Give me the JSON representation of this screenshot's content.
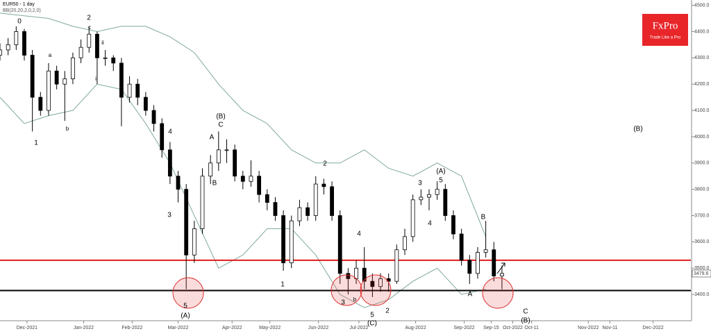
{
  "header": {
    "symbol": "EUR50 - 1 day",
    "indicator": "BB(20,20,2,0,2,0)"
  },
  "logo": {
    "brand": "FxPro",
    "slogan": "Trade Like a Pro"
  },
  "chart_data": {
    "type": "candlestick",
    "x": [
      0,
      3,
      6,
      9,
      12,
      15,
      18,
      21,
      24,
      27,
      30,
      33,
      36,
      39,
      42,
      45,
      48,
      51,
      54,
      57,
      60,
      63,
      66,
      69,
      72,
      75,
      78,
      81,
      84,
      87,
      90,
      93,
      96,
      99,
      102,
      105,
      108,
      111,
      114,
      117,
      120,
      123,
      126,
      129,
      132,
      135,
      138,
      141,
      144,
      147,
      150,
      153,
      156,
      159,
      162,
      165,
      168,
      171,
      174,
      177,
      180,
      183,
      186
    ],
    "ohlc": [
      [
        4310,
        4355,
        4290,
        4330
      ],
      [
        4330,
        4375,
        4310,
        4350
      ],
      [
        4350,
        4420,
        4330,
        4400
      ],
      [
        4400,
        4410,
        4290,
        4310
      ],
      [
        4310,
        4330,
        4020,
        4150
      ],
      [
        4150,
        4170,
        4080,
        4100
      ],
      [
        4100,
        4280,
        4080,
        4250
      ],
      [
        4250,
        4270,
        4180,
        4200
      ],
      [
        4200,
        4250,
        4060,
        4220
      ],
      [
        4220,
        4320,
        4200,
        4300
      ],
      [
        4300,
        4370,
        4280,
        4340
      ],
      [
        4340,
        4420,
        4320,
        4390
      ],
      [
        4390,
        4400,
        4200,
        4300
      ],
      [
        4300,
        4330,
        4270,
        4300
      ],
      [
        4300,
        4310,
        4250,
        4280
      ],
      [
        4280,
        4300,
        4040,
        4150
      ],
      [
        4150,
        4230,
        4130,
        4200
      ],
      [
        4200,
        4220,
        4120,
        4150
      ],
      [
        4150,
        4170,
        4080,
        4100
      ],
      [
        4100,
        4120,
        4020,
        4050
      ],
      [
        4050,
        4070,
        3920,
        3950
      ],
      [
        3950,
        3980,
        3820,
        3850
      ],
      [
        3850,
        3870,
        3750,
        3800
      ],
      [
        3800,
        3820,
        3420,
        3550
      ],
      [
        3550,
        3680,
        3520,
        3650
      ],
      [
        3650,
        3880,
        3630,
        3850
      ],
      [
        3850,
        3930,
        3820,
        3900
      ],
      [
        3900,
        4020,
        3870,
        3950
      ],
      [
        3950,
        3990,
        3900,
        3950
      ],
      [
        3950,
        3970,
        3830,
        3850
      ],
      [
        3850,
        3870,
        3800,
        3830
      ],
      [
        3830,
        3910,
        3810,
        3850
      ],
      [
        3850,
        3870,
        3750,
        3780
      ],
      [
        3780,
        3800,
        3720,
        3750
      ],
      [
        3750,
        3770,
        3680,
        3700
      ],
      [
        3700,
        3720,
        3490,
        3520
      ],
      [
        3520,
        3700,
        3500,
        3680
      ],
      [
        3680,
        3760,
        3660,
        3730
      ],
      [
        3730,
        3750,
        3680,
        3700
      ],
      [
        3700,
        3850,
        3680,
        3820
      ],
      [
        3820,
        3840,
        3780,
        3810
      ],
      [
        3810,
        3830,
        3680,
        3700
      ],
      [
        3700,
        3720,
        3440,
        3480
      ],
      [
        3480,
        3500,
        3400,
        3460
      ],
      [
        3460,
        3530,
        3440,
        3500
      ],
      [
        3500,
        3580,
        3420,
        3450
      ],
      [
        3450,
        3480,
        3390,
        3430
      ],
      [
        3430,
        3480,
        3410,
        3460
      ],
      [
        3460,
        3480,
        3410,
        3450
      ],
      [
        3450,
        3590,
        3440,
        3570
      ],
      [
        3570,
        3650,
        3550,
        3620
      ],
      [
        3620,
        3780,
        3600,
        3760
      ],
      [
        3760,
        3800,
        3740,
        3770
      ],
      [
        3770,
        3800,
        3720,
        3780
      ],
      [
        3780,
        3830,
        3760,
        3800
      ],
      [
        3800,
        3820,
        3680,
        3700
      ],
      [
        3700,
        3720,
        3610,
        3630
      ],
      [
        3630,
        3650,
        3510,
        3530
      ],
      [
        3530,
        3550,
        3440,
        3480
      ],
      [
        3480,
        3580,
        3460,
        3560
      ],
      [
        3560,
        3680,
        3540,
        3570
      ],
      [
        3570,
        3600,
        3450,
        3470
      ],
      [
        3470,
        3510,
        3420,
        3480
      ]
    ],
    "bands": {
      "color": "#7fa89a",
      "x": [
        0,
        9,
        18,
        27,
        36,
        45,
        54,
        63,
        72,
        81,
        90,
        99,
        108,
        117,
        126,
        135,
        144,
        153,
        162,
        171,
        180
      ],
      "upper": [
        4470,
        4460,
        4450,
        4420,
        4400,
        4420,
        4420,
        4380,
        4320,
        4200,
        4100,
        4050,
        3950,
        3900,
        3900,
        3950,
        3880,
        3850,
        3900,
        3850,
        3620
      ],
      "lower": [
        4150,
        4050,
        4080,
        4100,
        4200,
        4180,
        4050,
        3900,
        3700,
        3500,
        3550,
        3650,
        3650,
        3550,
        3400,
        3350,
        3380,
        3450,
        3500,
        3400,
        3420
      ]
    },
    "levels": [
      {
        "value": 3530,
        "color": "#e31a1a"
      },
      {
        "value": 3415,
        "color": "#000000"
      }
    ],
    "last_price": 3479.6,
    "xlim": [
      0,
      256
    ],
    "xticks": [
      {
        "value": 10,
        "label": "Dec-2021"
      },
      {
        "value": 31,
        "label": "Jan-2022"
      },
      {
        "value": 49,
        "label": "Feb-2022"
      },
      {
        "value": 66,
        "label": "Mar-2022"
      },
      {
        "value": 86,
        "label": "Apr-2022"
      },
      {
        "value": 100,
        "label": "May-2022"
      },
      {
        "value": 118,
        "label": "Jun-2022"
      },
      {
        "value": 133,
        "label": "Jul-2022"
      },
      {
        "value": 154,
        "label": "Aug-2022"
      },
      {
        "value": 172,
        "label": "Sep-2022"
      },
      {
        "value": 182,
        "label": "Sep-15"
      },
      {
        "value": 190,
        "label": "Oct-2022"
      },
      {
        "value": 197,
        "label": "Oct-11"
      },
      {
        "value": 218,
        "label": "Nov-2022"
      },
      {
        "value": 226,
        "label": "Nov-11"
      },
      {
        "value": 242,
        "label": "Dec-2022"
      }
    ],
    "ylim": [
      3300,
      4520
    ],
    "yticks": [
      {
        "value": 3400,
        "label": "3400.0"
      },
      {
        "value": 3500,
        "label": "3500.0"
      },
      {
        "value": 3600,
        "label": "3600.0"
      },
      {
        "value": 3700,
        "label": "3700.0"
      },
      {
        "value": 3800,
        "label": "3800.0"
      },
      {
        "value": 3900,
        "label": "3900.0"
      },
      {
        "value": 4000,
        "label": "4000.0"
      },
      {
        "value": 4100,
        "label": "4100.0"
      },
      {
        "value": 4200,
        "label": "4200.0"
      },
      {
        "value": 4300,
        "label": "4300.0"
      },
      {
        "value": 4400,
        "label": "4400.0"
      },
      {
        "value": 4500,
        "label": "4500.0"
      }
    ],
    "annotations": [
      "0",
      "2",
      "c",
      "a",
      "ii",
      "i",
      "1",
      "b",
      "(B)",
      "C",
      "A",
      "B",
      "4",
      "3",
      "5",
      "(A)",
      "1",
      "2",
      "4",
      "5",
      "(C)",
      "3",
      "b",
      "2",
      "(A)",
      "5",
      "3",
      "4",
      "B",
      "A",
      "C",
      "(B)",
      "(B)"
    ]
  }
}
